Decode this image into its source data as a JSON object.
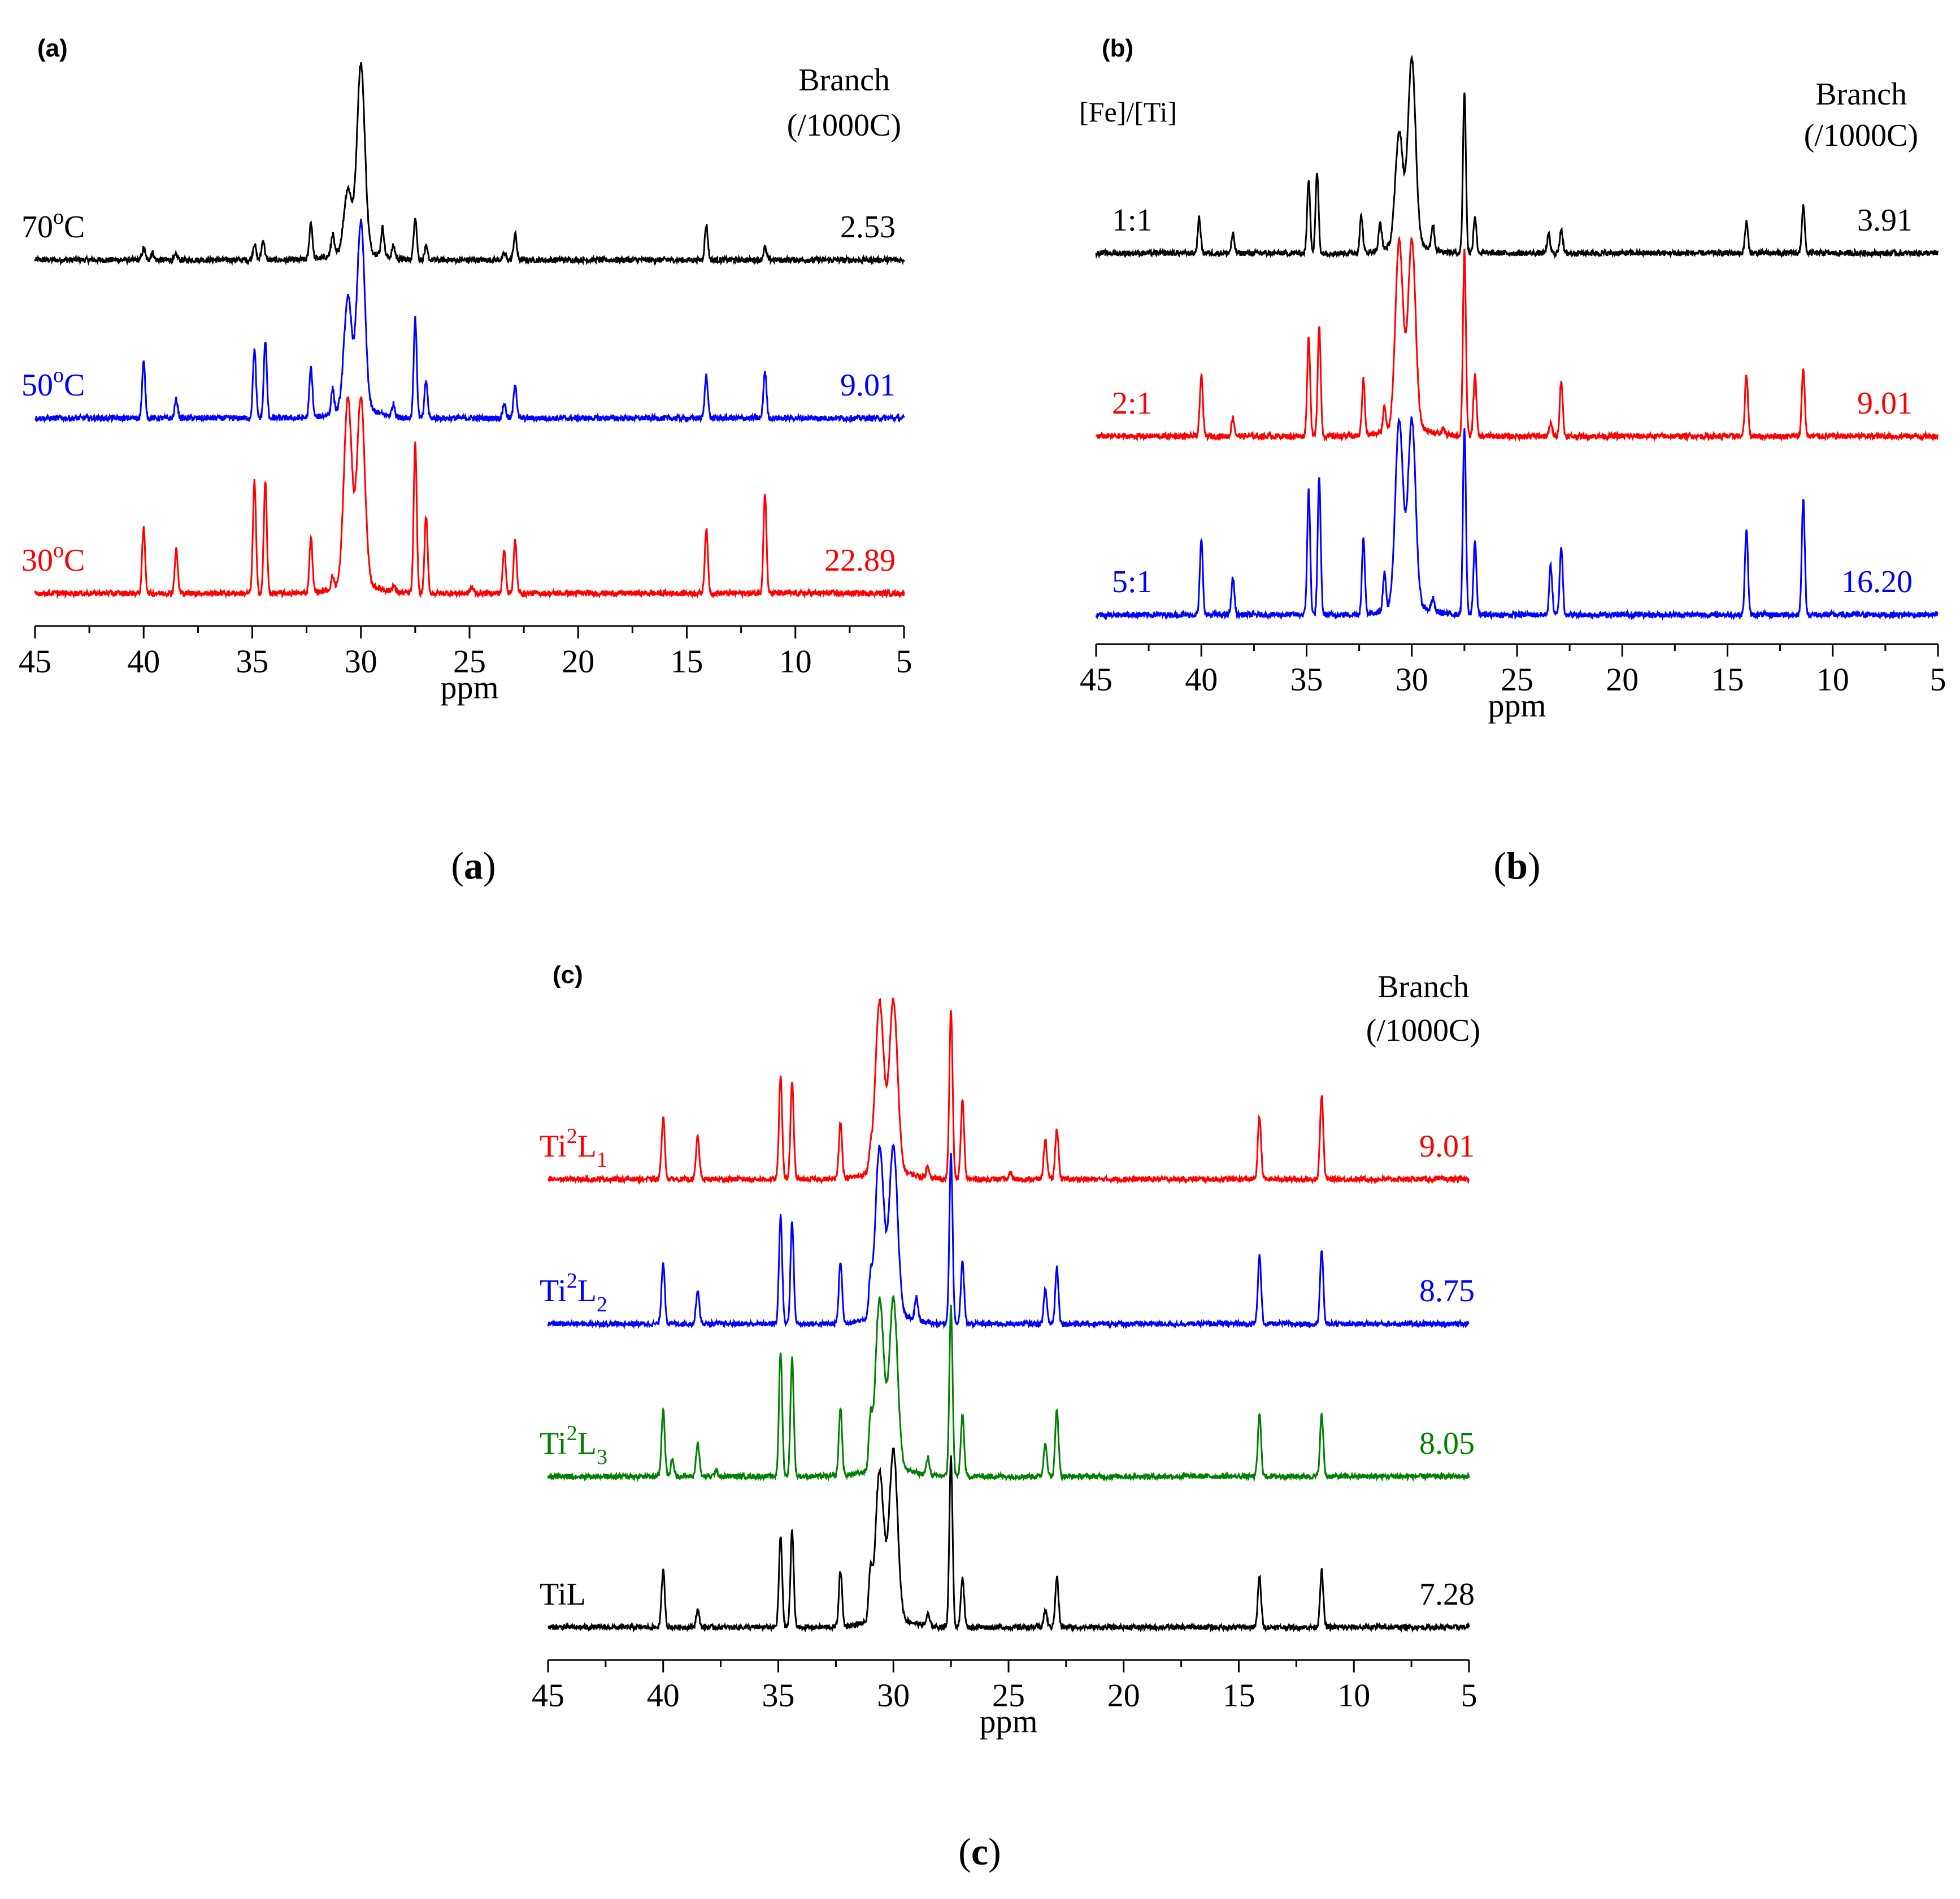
{
  "chart_data": [
    {
      "type": "line",
      "panel_label": "(a)",
      "caption_letter": "a",
      "title": "",
      "xlabel": "ppm",
      "ylabel": "",
      "xlim": [
        45,
        5
      ],
      "x_reversed": true,
      "x_ticks": [
        45,
        40,
        35,
        30,
        25,
        20,
        15,
        10,
        5
      ],
      "group_label": "",
      "branch_header": [
        "Branch",
        "(/1000C)"
      ],
      "series": [
        {
          "name": "70",
          "name_sup": "o",
          "name_tail": "C",
          "branch": "2.53",
          "color": "#000000",
          "peaks": [
            [
              40.0,
              0.09
            ],
            [
              39.6,
              0.06
            ],
            [
              38.5,
              0.04
            ],
            [
              34.9,
              0.13
            ],
            [
              34.5,
              0.16
            ],
            [
              32.3,
              0.3
            ],
            [
              31.3,
              0.17
            ],
            [
              30.6,
              0.5
            ],
            [
              30.0,
              1.5
            ],
            [
              29.0,
              0.23
            ],
            [
              28.5,
              0.1
            ],
            [
              27.5,
              0.35
            ],
            [
              27.0,
              0.1
            ],
            [
              23.4,
              0.05
            ],
            [
              22.9,
              0.21
            ],
            [
              14.1,
              0.28
            ],
            [
              11.4,
              0.1
            ]
          ]
        },
        {
          "name": "50",
          "name_sup": "o",
          "name_tail": "C",
          "branch": "9.01",
          "color": "#0000ff",
          "peaks": [
            [
              40.0,
              0.45
            ],
            [
              38.5,
              0.15
            ],
            [
              34.9,
              0.55
            ],
            [
              34.4,
              0.62
            ],
            [
              32.3,
              0.4
            ],
            [
              31.3,
              0.2
            ],
            [
              30.6,
              0.9
            ],
            [
              30.0,
              1.5
            ],
            [
              28.5,
              0.1
            ],
            [
              27.5,
              0.8
            ],
            [
              27.0,
              0.3
            ],
            [
              23.4,
              0.12
            ],
            [
              22.9,
              0.28
            ],
            [
              14.1,
              0.35
            ],
            [
              11.4,
              0.38
            ]
          ]
        },
        {
          "name": "30",
          "name_sup": "o",
          "name_tail": "C",
          "branch": "22.89",
          "color": "#ff0000",
          "peaks": [
            [
              40.0,
              0.52
            ],
            [
              38.5,
              0.35
            ],
            [
              34.9,
              0.9
            ],
            [
              34.4,
              0.9
            ],
            [
              32.3,
              0.45
            ],
            [
              31.3,
              0.1
            ],
            [
              30.6,
              1.5
            ],
            [
              30.0,
              1.5
            ],
            [
              28.5,
              0.05
            ],
            [
              27.5,
              1.2
            ],
            [
              27.0,
              0.62
            ],
            [
              24.9,
              0.05
            ],
            [
              23.4,
              0.35
            ],
            [
              22.9,
              0.42
            ],
            [
              14.1,
              0.52
            ],
            [
              11.4,
              0.8
            ]
          ]
        }
      ]
    },
    {
      "type": "line",
      "panel_label": "(b)",
      "caption_letter": "b",
      "title": "",
      "xlabel": "ppm",
      "ylabel": "",
      "xlim": [
        45,
        5
      ],
      "x_reversed": true,
      "x_ticks": [
        45,
        40,
        35,
        30,
        25,
        20,
        15,
        10,
        5
      ],
      "group_label": "[Fe]/[Ti]",
      "branch_header": [
        "Branch",
        "(/1000C)"
      ],
      "series": [
        {
          "name": "1:1",
          "name_sup": "",
          "name_tail": "",
          "branch": "3.91",
          "color": "#000000",
          "peaks": [
            [
              40.1,
              0.28
            ],
            [
              38.5,
              0.15
            ],
            [
              34.9,
              0.6
            ],
            [
              34.5,
              0.65
            ],
            [
              32.4,
              0.3
            ],
            [
              31.5,
              0.22
            ],
            [
              30.6,
              0.9
            ],
            [
              30.0,
              1.5
            ],
            [
              29.0,
              0.2
            ],
            [
              27.5,
              1.3
            ],
            [
              27.0,
              0.3
            ],
            [
              23.5,
              0.15
            ],
            [
              22.9,
              0.2
            ],
            [
              14.1,
              0.25
            ],
            [
              11.4,
              0.38
            ]
          ]
        },
        {
          "name": "2:1",
          "name_sup": "",
          "name_tail": "",
          "branch": "9.01",
          "color": "#ff0000",
          "peaks": [
            [
              40.0,
              0.5
            ],
            [
              38.5,
              0.15
            ],
            [
              34.9,
              0.8
            ],
            [
              34.4,
              0.9
            ],
            [
              32.3,
              0.45
            ],
            [
              31.3,
              0.2
            ],
            [
              30.6,
              1.5
            ],
            [
              30.0,
              1.5
            ],
            [
              28.5,
              0.05
            ],
            [
              27.5,
              1.5
            ],
            [
              27.0,
              0.5
            ],
            [
              23.4,
              0.1
            ],
            [
              22.9,
              0.45
            ],
            [
              14.1,
              0.5
            ],
            [
              11.4,
              0.55
            ]
          ]
        },
        {
          "name": "5:1",
          "name_sup": "",
          "name_tail": "",
          "branch": "16.20",
          "color": "#0000ff",
          "peaks": [
            [
              40.0,
              0.6
            ],
            [
              38.5,
              0.3
            ],
            [
              34.9,
              1.0
            ],
            [
              34.4,
              1.1
            ],
            [
              32.3,
              0.6
            ],
            [
              31.3,
              0.3
            ],
            [
              30.6,
              1.5
            ],
            [
              30.0,
              1.5
            ],
            [
              29.0,
              0.1
            ],
            [
              27.5,
              1.5
            ],
            [
              27.0,
              0.6
            ],
            [
              23.4,
              0.4
            ],
            [
              22.9,
              0.55
            ],
            [
              14.1,
              0.7
            ],
            [
              11.4,
              0.95
            ]
          ]
        }
      ]
    },
    {
      "type": "line",
      "panel_label": "(c)",
      "caption_letter": "c",
      "title": "",
      "xlabel": "ppm",
      "ylabel": "",
      "xlim": [
        45,
        5
      ],
      "x_reversed": true,
      "x_ticks": [
        45,
        40,
        35,
        30,
        25,
        20,
        15,
        10,
        5
      ],
      "group_label": "",
      "branch_header": [
        "Branch",
        "(/1000C)"
      ],
      "series": [
        {
          "name": "Ti",
          "name_sup": "2",
          "name_tail": "L",
          "name_sub": "1",
          "branch": "9.01",
          "color": "#ff0000",
          "peaks": [
            [
              40.0,
              0.55
            ],
            [
              38.5,
              0.38
            ],
            [
              34.9,
              0.9
            ],
            [
              34.4,
              0.85
            ],
            [
              32.3,
              0.5
            ],
            [
              31.0,
              0.15
            ],
            [
              30.6,
              1.5
            ],
            [
              30.0,
              1.5
            ],
            [
              28.5,
              0.1
            ],
            [
              27.5,
              1.5
            ],
            [
              27.0,
              0.7
            ],
            [
              24.9,
              0.05
            ],
            [
              23.4,
              0.35
            ],
            [
              22.9,
              0.45
            ],
            [
              14.1,
              0.55
            ],
            [
              11.4,
              0.75
            ]
          ]
        },
        {
          "name": "Ti",
          "name_sup": "2",
          "name_tail": "L",
          "name_sub": "2",
          "branch": "8.75",
          "color": "#0000ff",
          "peaks": [
            [
              40.0,
              0.55
            ],
            [
              38.5,
              0.3
            ],
            [
              34.9,
              0.95
            ],
            [
              34.4,
              0.9
            ],
            [
              32.3,
              0.55
            ],
            [
              31.0,
              0.3
            ],
            [
              30.6,
              1.5
            ],
            [
              30.0,
              1.5
            ],
            [
              29.0,
              0.2
            ],
            [
              27.5,
              1.5
            ],
            [
              27.0,
              0.55
            ],
            [
              23.4,
              0.3
            ],
            [
              22.9,
              0.5
            ],
            [
              14.1,
              0.6
            ],
            [
              11.4,
              0.65
            ]
          ]
        },
        {
          "name": "Ti",
          "name_sup": "2",
          "name_tail": "L",
          "name_sub": "3",
          "branch": "8.05",
          "color": "#008000",
          "peaks": [
            [
              40.0,
              0.6
            ],
            [
              39.6,
              0.15
            ],
            [
              38.5,
              0.3
            ],
            [
              37.7,
              0.05
            ],
            [
              34.9,
              1.1
            ],
            [
              34.4,
              1.05
            ],
            [
              32.3,
              0.6
            ],
            [
              31.0,
              0.4
            ],
            [
              30.6,
              1.5
            ],
            [
              30.0,
              1.5
            ],
            [
              28.5,
              0.15
            ],
            [
              27.5,
              1.5
            ],
            [
              27.0,
              0.55
            ],
            [
              23.4,
              0.3
            ],
            [
              22.9,
              0.6
            ],
            [
              14.1,
              0.55
            ],
            [
              11.4,
              0.55
            ]
          ]
        },
        {
          "name": "TiL",
          "name_sup": "",
          "name_tail": "",
          "name_sub": "",
          "branch": "7.28",
          "color": "#000000",
          "peaks": [
            [
              40.0,
              0.5
            ],
            [
              38.5,
              0.15
            ],
            [
              34.9,
              0.8
            ],
            [
              34.4,
              0.85
            ],
            [
              32.3,
              0.5
            ],
            [
              31.0,
              0.4
            ],
            [
              30.6,
              1.3
            ],
            [
              30.0,
              1.5
            ],
            [
              28.5,
              0.1
            ],
            [
              27.5,
              1.5
            ],
            [
              27.0,
              0.45
            ],
            [
              23.4,
              0.15
            ],
            [
              22.9,
              0.45
            ],
            [
              14.1,
              0.45
            ],
            [
              11.4,
              0.5
            ]
          ]
        }
      ]
    }
  ]
}
